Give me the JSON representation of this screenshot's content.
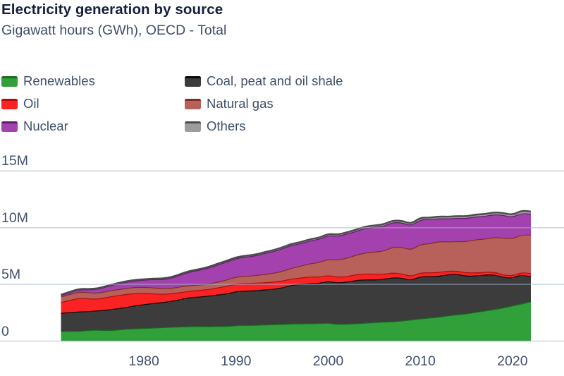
{
  "header": {
    "title": "Electricity generation by source",
    "subtitle": "Gigawatt hours (GWh), OECD - Total"
  },
  "colors": {
    "background": "#ffffff",
    "title_text": "#14213d",
    "axis_label_text": "#41516e",
    "legend_text": "#3f4f6a",
    "gridline": "rgba(165,178,204,0.55)"
  },
  "legend": {
    "column1": [
      "Renewables",
      "Oil",
      "Nuclear"
    ],
    "column2": [
      "Coal, peat and oil shale",
      "Natural gas",
      "Others"
    ]
  },
  "axes": {
    "y_ticks": [
      {
        "label": "0",
        "value": 0
      },
      {
        "label": "5M",
        "value": 5
      },
      {
        "label": "10M",
        "value": 10
      },
      {
        "label": "15M",
        "value": 15
      }
    ],
    "x_ticks": [
      {
        "label": "1980",
        "year": 1980
      },
      {
        "label": "1990",
        "year": 1990
      },
      {
        "label": "2000",
        "year": 2000
      },
      {
        "label": "2010",
        "year": 2010
      },
      {
        "label": "2020",
        "year": 2020
      }
    ]
  },
  "chart_data": {
    "type": "area",
    "stacked": true,
    "title": "Electricity generation by source",
    "subtitle": "Gigawatt hours (GWh), OECD - Total",
    "unit": "million GWh",
    "ylabel": "Gigawatt hours (GWh)",
    "xlim": [
      1971,
      2022
    ],
    "ylim": [
      0,
      15
    ],
    "grid": true,
    "legend_position": "top-left",
    "x": [
      1971,
      1972,
      1973,
      1974,
      1975,
      1976,
      1977,
      1978,
      1979,
      1980,
      1981,
      1982,
      1983,
      1984,
      1985,
      1986,
      1987,
      1988,
      1989,
      1990,
      1991,
      1992,
      1993,
      1994,
      1995,
      1996,
      1997,
      1998,
      1999,
      2000,
      2001,
      2002,
      2003,
      2004,
      2005,
      2006,
      2007,
      2008,
      2009,
      2010,
      2011,
      2012,
      2013,
      2014,
      2015,
      2016,
      2017,
      2018,
      2019,
      2020,
      2021,
      2022
    ],
    "series": [
      {
        "name": "Renewables",
        "fill": "#31a03a",
        "stroke": "#186a20",
        "values": [
          0.88,
          0.9,
          0.89,
          0.98,
          1.0,
          0.96,
          1.0,
          1.08,
          1.12,
          1.15,
          1.18,
          1.22,
          1.26,
          1.28,
          1.31,
          1.32,
          1.3,
          1.33,
          1.32,
          1.4,
          1.42,
          1.42,
          1.46,
          1.48,
          1.5,
          1.55,
          1.55,
          1.57,
          1.58,
          1.62,
          1.5,
          1.53,
          1.56,
          1.62,
          1.66,
          1.71,
          1.73,
          1.81,
          1.89,
          2.0,
          2.06,
          2.15,
          2.26,
          2.35,
          2.43,
          2.57,
          2.68,
          2.82,
          2.95,
          3.15,
          3.3,
          3.52
        ]
      },
      {
        "name": "Coal, peat and oil shale",
        "fill": "#3c3c3c",
        "stroke": "#060606",
        "values": [
          1.6,
          1.66,
          1.72,
          1.66,
          1.7,
          1.8,
          1.88,
          1.9,
          2.02,
          2.1,
          2.17,
          2.21,
          2.28,
          2.42,
          2.56,
          2.6,
          2.7,
          2.78,
          2.86,
          3.0,
          3.02,
          3.05,
          3.08,
          3.12,
          3.22,
          3.4,
          3.48,
          3.54,
          3.54,
          3.68,
          3.66,
          3.7,
          3.82,
          3.82,
          3.76,
          3.77,
          3.89,
          3.79,
          3.49,
          3.72,
          3.65,
          3.59,
          3.63,
          3.58,
          3.32,
          3.21,
          3.17,
          3.07,
          2.7,
          2.44,
          2.6,
          2.17
        ]
      },
      {
        "name": "Oil",
        "fill": "#fa2222",
        "stroke": "#b00c0c",
        "values": [
          0.95,
          1.07,
          1.21,
          1.12,
          1.03,
          1.13,
          1.15,
          1.16,
          1.09,
          0.99,
          0.85,
          0.73,
          0.66,
          0.62,
          0.56,
          0.59,
          0.58,
          0.62,
          0.68,
          0.68,
          0.67,
          0.67,
          0.64,
          0.64,
          0.6,
          0.57,
          0.56,
          0.59,
          0.55,
          0.53,
          0.51,
          0.48,
          0.52,
          0.52,
          0.52,
          0.44,
          0.43,
          0.38,
          0.34,
          0.34,
          0.35,
          0.35,
          0.31,
          0.28,
          0.3,
          0.27,
          0.25,
          0.24,
          0.22,
          0.2,
          0.21,
          0.3
        ]
      },
      {
        "name": "Natural gas",
        "fill": "#b8615a",
        "stroke": "#7e2d27",
        "values": [
          0.5,
          0.53,
          0.55,
          0.54,
          0.52,
          0.53,
          0.52,
          0.52,
          0.54,
          0.54,
          0.53,
          0.5,
          0.48,
          0.5,
          0.5,
          0.47,
          0.48,
          0.5,
          0.56,
          0.61,
          0.63,
          0.67,
          0.71,
          0.77,
          0.84,
          0.94,
          1.04,
          1.16,
          1.28,
          1.42,
          1.49,
          1.63,
          1.7,
          1.85,
          1.95,
          2.04,
          2.27,
          2.33,
          2.34,
          2.51,
          2.54,
          2.73,
          2.58,
          2.61,
          2.75,
          2.93,
          2.92,
          3.05,
          3.25,
          3.27,
          3.3,
          3.4
        ]
      },
      {
        "name": "Nuclear",
        "fill": "#a341ae",
        "stroke": "#601b6b",
        "values": [
          0.12,
          0.16,
          0.2,
          0.26,
          0.35,
          0.41,
          0.49,
          0.56,
          0.57,
          0.63,
          0.74,
          0.8,
          0.9,
          1.05,
          1.2,
          1.3,
          1.4,
          1.52,
          1.59,
          1.63,
          1.7,
          1.72,
          1.85,
          1.9,
          2.0,
          2.02,
          1.98,
          2.02,
          2.05,
          2.1,
          2.11,
          2.13,
          2.09,
          2.16,
          2.19,
          2.19,
          2.17,
          2.17,
          2.13,
          2.18,
          2.13,
          2.02,
          2.03,
          2.05,
          2.04,
          2.02,
          2.01,
          2.01,
          2.01,
          1.89,
          1.92,
          1.84
        ]
      },
      {
        "name": "Others",
        "fill": "#9c9c9c",
        "stroke": "#4c4c4c",
        "values": [
          0.04,
          0.04,
          0.04,
          0.04,
          0.04,
          0.04,
          0.05,
          0.05,
          0.05,
          0.05,
          0.05,
          0.06,
          0.06,
          0.06,
          0.07,
          0.07,
          0.07,
          0.08,
          0.08,
          0.08,
          0.09,
          0.09,
          0.09,
          0.1,
          0.1,
          0.1,
          0.11,
          0.11,
          0.11,
          0.12,
          0.12,
          0.12,
          0.13,
          0.13,
          0.13,
          0.14,
          0.14,
          0.14,
          0.15,
          0.15,
          0.15,
          0.16,
          0.16,
          0.16,
          0.17,
          0.17,
          0.17,
          0.18,
          0.18,
          0.18,
          0.19,
          0.2
        ]
      }
    ]
  }
}
